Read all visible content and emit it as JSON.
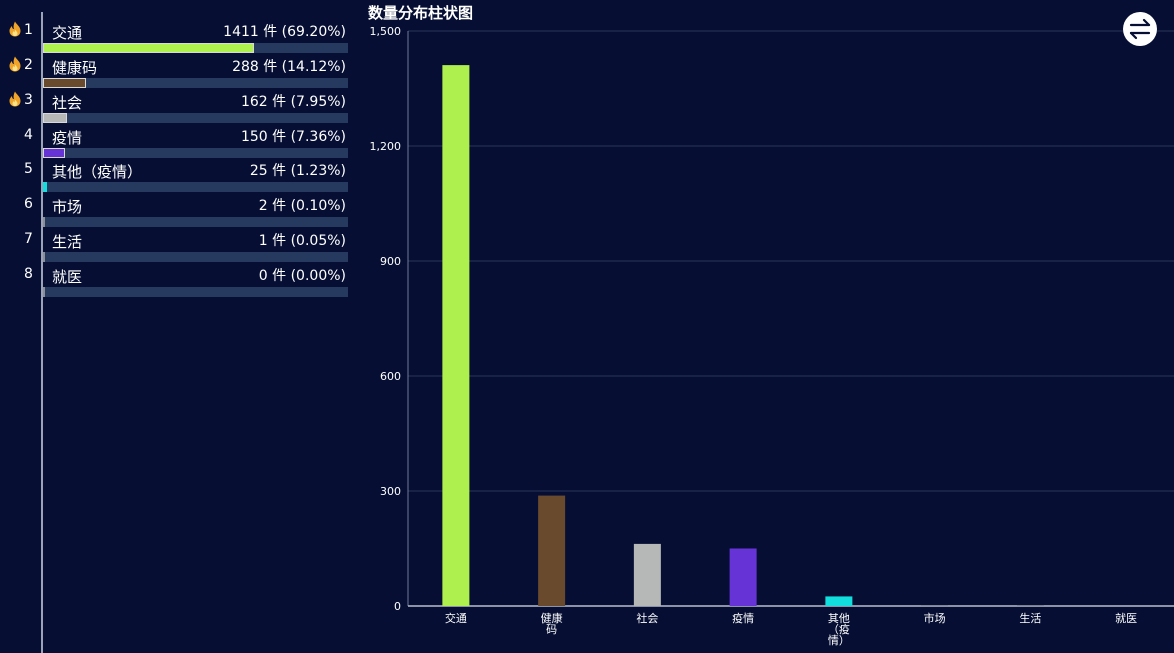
{
  "ranking": {
    "items": [
      {
        "rank": "1",
        "name": "交通",
        "value": "1411 件 (69.20%)",
        "pct": 69.2,
        "hot": true,
        "color": "#aef14e"
      },
      {
        "rank": "2",
        "name": "健康码",
        "value": "288 件 (14.12%)",
        "pct": 14.12,
        "hot": true,
        "color": "#6a4a2d"
      },
      {
        "rank": "3",
        "name": "社会",
        "value": "162 件 (7.95%)",
        "pct": 7.95,
        "hot": true,
        "color": "#b5b8b6"
      },
      {
        "rank": "4",
        "name": "疫情",
        "value": "150 件 (7.36%)",
        "pct": 7.36,
        "hot": false,
        "color": "#6633d6"
      },
      {
        "rank": "5",
        "name": "其他（疫情）",
        "value": "25 件 (1.23%)",
        "pct": 1.23,
        "hot": false,
        "color": "#12dede"
      },
      {
        "rank": "6",
        "name": "市场",
        "value": "2 件 (0.10%)",
        "pct": 0.1,
        "hot": false,
        "color": "#8a8f9a"
      },
      {
        "rank": "7",
        "name": "生活",
        "value": "1 件 (0.05%)",
        "pct": 0.05,
        "hot": false,
        "color": "#8a8f9a"
      },
      {
        "rank": "8",
        "name": "就医",
        "value": "0 件 (0.00%)",
        "pct": 0.0,
        "hot": false,
        "color": "#8a8f9a"
      }
    ]
  },
  "chart_title": "数量分布柱状图",
  "toolbar": {
    "switch_icon": "swap-icon"
  },
  "chart_data": {
    "type": "bar",
    "title": "数量分布柱状图",
    "categories": [
      "交通",
      "健康码",
      "社会",
      "疫情",
      "其他（疫情）",
      "市场",
      "生活",
      "就医"
    ],
    "category_label_lines": [
      [
        "交通"
      ],
      [
        "健康",
        "码"
      ],
      [
        "社会"
      ],
      [
        "疫情"
      ],
      [
        "其他",
        "（疫",
        "情）"
      ],
      [
        "市场"
      ],
      [
        "生活"
      ],
      [
        "就医"
      ]
    ],
    "values": [
      1411,
      288,
      162,
      150,
      25,
      2,
      1,
      0
    ],
    "colors": [
      "#aef14e",
      "#6a4a2d",
      "#b5b8b6",
      "#6633d6",
      "#12dede",
      "#8a8f9a",
      "#8a8f9a",
      "#8a8f9a"
    ],
    "yticks": [
      "0",
      "300",
      "600",
      "900",
      "1,200",
      "1,500"
    ],
    "ylim": [
      0,
      1500
    ],
    "grid": true
  }
}
